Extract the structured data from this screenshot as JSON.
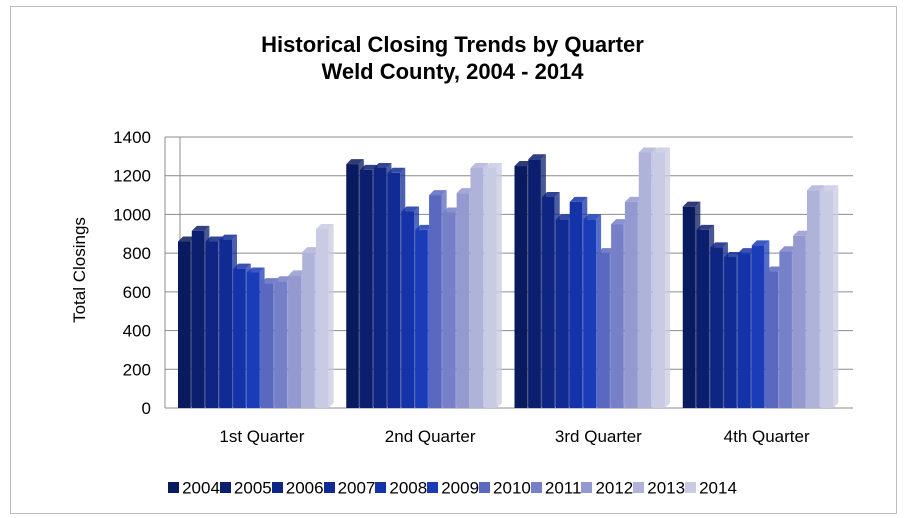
{
  "chart_data": {
    "type": "bar",
    "title": "Historical Closing Trends by Quarter",
    "subtitle": "Weld County, 2004 - 2014",
    "ylabel": "Total Closings",
    "xlabel": "",
    "ylim": [
      0,
      1400
    ],
    "yticks": [
      0,
      200,
      400,
      600,
      800,
      1000,
      1200,
      1400
    ],
    "grid": true,
    "legend_position": "bottom",
    "categories": [
      "1st Quarter",
      "2nd Quarter",
      "3rd Quarter",
      "4th Quarter"
    ],
    "series": [
      {
        "name": "2004",
        "color": "#0a1a5e",
        "values": [
          860,
          1260,
          1250,
          1040
        ]
      },
      {
        "name": "2005",
        "color": "#0c1f6e",
        "values": [
          915,
          1230,
          1285,
          920
        ]
      },
      {
        "name": "2006",
        "color": "#0e2583",
        "values": [
          860,
          1240,
          1090,
          830
        ]
      },
      {
        "name": "2007",
        "color": "#112b95",
        "values": [
          870,
          1215,
          975,
          780
        ]
      },
      {
        "name": "2008",
        "color": "#1433a8",
        "values": [
          720,
          1015,
          1065,
          800
        ]
      },
      {
        "name": "2009",
        "color": "#1a3cb8",
        "values": [
          700,
          920,
          975,
          840
        ]
      },
      {
        "name": "2010",
        "color": "#5a68c0",
        "values": [
          645,
          1100,
          800,
          705
        ]
      },
      {
        "name": "2011",
        "color": "#7680c8",
        "values": [
          655,
          1010,
          950,
          810
        ]
      },
      {
        "name": "2012",
        "color": "#9499cf",
        "values": [
          685,
          1110,
          1065,
          890
        ]
      },
      {
        "name": "2013",
        "color": "#b0b3d9",
        "values": [
          805,
          1240,
          1320,
          1125
        ]
      },
      {
        "name": "2014",
        "color": "#c9cae3",
        "values": [
          925,
          1240,
          1320,
          1125
        ]
      }
    ]
  }
}
